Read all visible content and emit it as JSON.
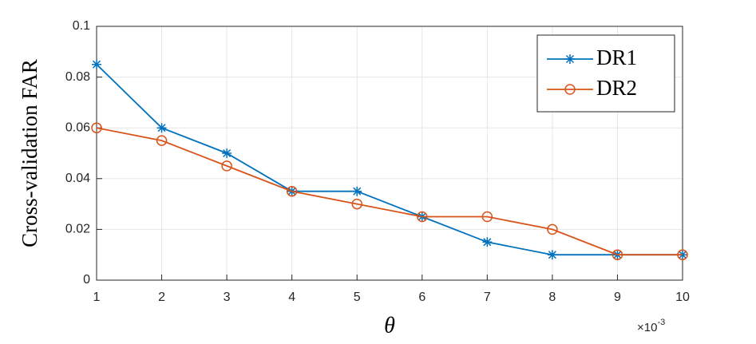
{
  "chart_data": {
    "type": "line",
    "x_label": "θ",
    "y_label": "Cross-validation FAR",
    "x_multiplier_base": "×10",
    "x_multiplier_exponent": "-3",
    "x": [
      1,
      2,
      3,
      4,
      5,
      6,
      7,
      8,
      9,
      10
    ],
    "series": [
      {
        "name": "DR1",
        "color": "#0072bd",
        "marker": "asterisk",
        "values": [
          0.085,
          0.06,
          0.05,
          0.035,
          0.035,
          0.025,
          0.015,
          0.01,
          0.01,
          0.01
        ]
      },
      {
        "name": "DR2",
        "color": "#d95319",
        "marker": "circle",
        "values": [
          0.06,
          0.055,
          0.045,
          0.035,
          0.03,
          0.025,
          0.025,
          0.02,
          0.01,
          0.01
        ]
      }
    ],
    "xlim": [
      1,
      10
    ],
    "xticks": [
      1,
      2,
      3,
      4,
      5,
      6,
      7,
      8,
      9,
      10
    ],
    "ylim": [
      0,
      0.1
    ],
    "yticks": [
      0,
      0.02,
      0.04,
      0.06,
      0.08,
      0.1
    ],
    "grid": true,
    "legend": "top-right"
  }
}
